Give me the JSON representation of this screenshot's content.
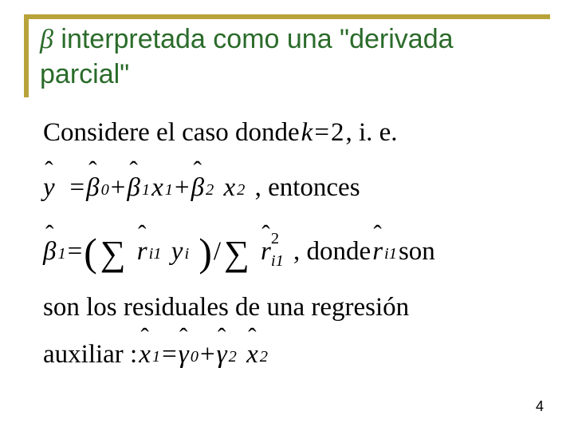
{
  "colors": {
    "title_border": "#b8a33a",
    "title_text": "#2a6b2a",
    "body_text": "#000000",
    "background": "#ffffff"
  },
  "typography": {
    "title_family": "Arial",
    "title_size_pt": 26,
    "body_family": "Times New Roman",
    "body_size_pt": 25
  },
  "title": {
    "beta": "β",
    "rest": " interpretada como una \"derivada parcial\""
  },
  "line1": {
    "pre": "Considere el caso donde ",
    "k": "k",
    "eq": " = ",
    "two": "2",
    "post": ", i. e."
  },
  "line2": {
    "y": "y",
    "eq": " = ",
    "b": "β",
    "s0": "0",
    "plus": " + ",
    "s1": "1",
    "x": "x",
    "s2": "2",
    "post": ", entonces"
  },
  "line3": {
    "b": "β",
    "s1": "1",
    "eq": " = ",
    "r": "r",
    "i1": "i1",
    "y": "y",
    "i": "i",
    "slash": "/",
    "sup2": "2",
    "post": ", donde ",
    "son": " son"
  },
  "line4": "son los residuales de una regresión",
  "line5": {
    "pre": "auxiliar :  ",
    "x": "x",
    "s1": "1",
    "eq": " = ",
    "g": "γ",
    "s0": "0",
    "plus": " + ",
    "s2": "2"
  },
  "page_number": "4"
}
